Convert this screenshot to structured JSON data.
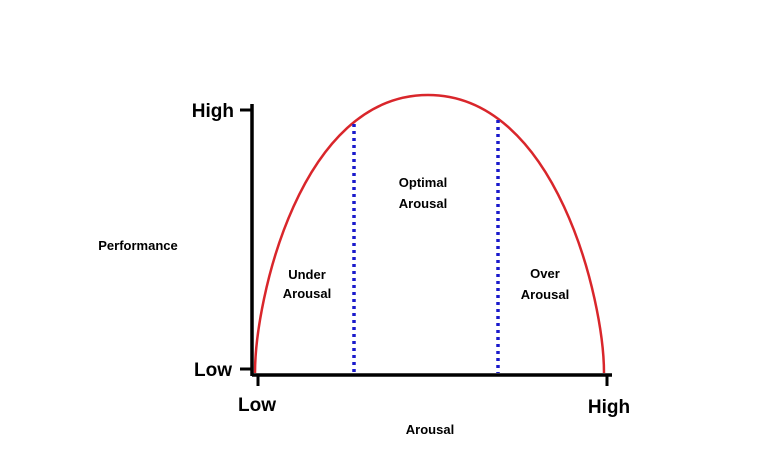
{
  "colors": {
    "curve": "#d9262b",
    "zone_divider": "#1a1acc",
    "axis": "#000000",
    "background": "#ffffff"
  },
  "y_axis": {
    "title": "Performance",
    "tick_high": "High",
    "tick_low": "Low"
  },
  "x_axis": {
    "title": "Arousal",
    "tick_low": "Low",
    "tick_high": "High"
  },
  "zones": {
    "under": {
      "line1": "Under",
      "line2": "Arousal"
    },
    "optimal": {
      "line1": "Optimal",
      "line2": "Arousal"
    },
    "over": {
      "line1": "Over",
      "line2": "Arousal"
    }
  }
}
